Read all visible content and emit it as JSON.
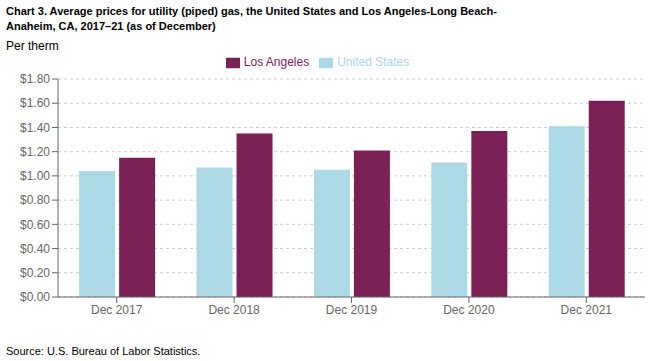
{
  "chart_data": {
    "type": "bar",
    "title": "Chart 3. Average prices for utility (piped) gas, the United States and Los Angeles-Long Beach-\nAnaheim, CA, 2017–21 (as of December)",
    "ylabel": "Per therm",
    "source": "Source: U.S. Bureau of Labor Statistics.",
    "categories": [
      "Dec 2017",
      "Dec 2018",
      "Dec 2019",
      "Dec 2020",
      "Dec 2021"
    ],
    "series": [
      {
        "name": "United States",
        "color": "#add8e6",
        "values": [
          1.04,
          1.07,
          1.05,
          1.11,
          1.41
        ]
      },
      {
        "name": "Los Angeles",
        "color": "#7b2155",
        "values": [
          1.15,
          1.35,
          1.21,
          1.37,
          1.62
        ]
      }
    ],
    "ylim": [
      0,
      1.8
    ],
    "yticks": [
      {
        "value": 0.0,
        "label": "$0.00"
      },
      {
        "value": 0.2,
        "label": "$0.20"
      },
      {
        "value": 0.4,
        "label": "$0.40"
      },
      {
        "value": 0.6,
        "label": "$0.60"
      },
      {
        "value": 0.8,
        "label": "$0.80"
      },
      {
        "value": 1.0,
        "label": "$1.00"
      },
      {
        "value": 1.2,
        "label": "$1.20"
      },
      {
        "value": 1.4,
        "label": "$1.40"
      },
      {
        "value": 1.6,
        "label": "$1.60"
      },
      {
        "value": 1.8,
        "label": "$1.80"
      }
    ],
    "grid": true,
    "legend": "top"
  }
}
